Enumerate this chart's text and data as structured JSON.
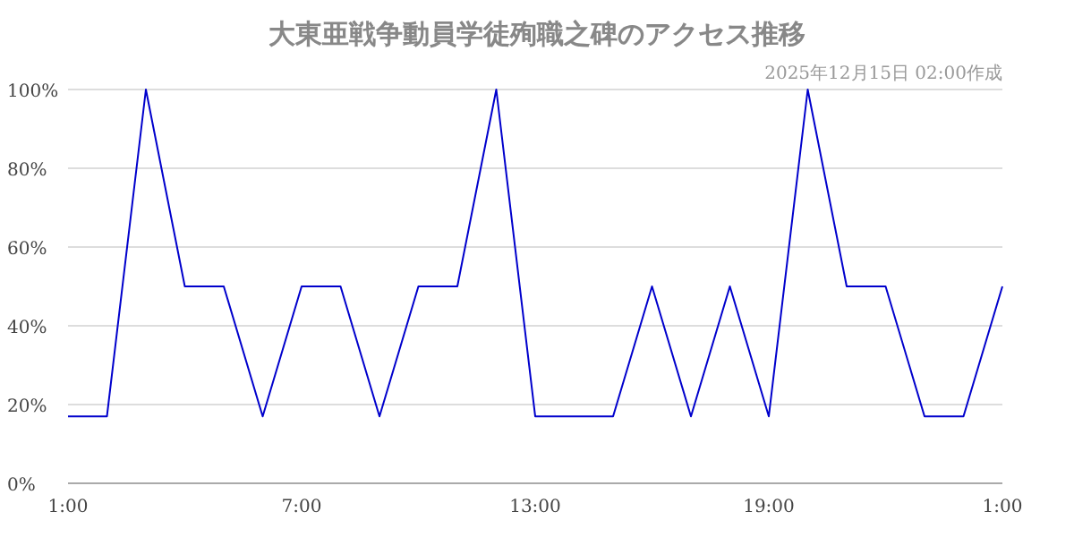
{
  "chart_data": {
    "type": "line",
    "title": "大東亜戦争動員学徒殉職之碑のアクセス推移",
    "subtitle": "2025年12月15日 02:00作成",
    "x": [
      "2025-12-14T01:00",
      "2025-12-14T02:00",
      "2025-12-14T03:00",
      "2025-12-14T04:00",
      "2025-12-14T05:00",
      "2025-12-14T06:00",
      "2025-12-14T07:00",
      "2025-12-14T08:00",
      "2025-12-14T09:00",
      "2025-12-14T10:00",
      "2025-12-14T11:00",
      "2025-12-14T12:00",
      "2025-12-14T13:00",
      "2025-12-14T14:00",
      "2025-12-14T15:00",
      "2025-12-14T16:00",
      "2025-12-14T17:00",
      "2025-12-14T18:00",
      "2025-12-14T19:00",
      "2025-12-14T20:00",
      "2025-12-14T21:00",
      "2025-12-14T22:00",
      "2025-12-14T23:00",
      "2025-12-15T00:00",
      "2025-12-15T01:00"
    ],
    "series": [
      {
        "color": "#0000cc",
        "values": [
          17,
          17,
          100,
          50,
          50,
          17,
          50,
          50,
          17,
          50,
          50,
          100,
          17,
          17,
          17,
          50,
          17,
          50,
          17,
          100,
          50,
          50,
          17,
          17,
          50
        ]
      }
    ],
    "xlim": [
      "2025-12-14T01:00",
      "2025-12-15T01:00"
    ],
    "xticks": [
      {
        "value": "2025-12-14T01:00",
        "label": "1:00"
      },
      {
        "value": "2025-12-14T07:00",
        "label": "7:00"
      },
      {
        "value": "2025-12-14T13:00",
        "label": "13:00"
      },
      {
        "value": "2025-12-14T19:00",
        "label": "19:00"
      },
      {
        "value": "2025-12-15T01:00",
        "label": "1:00"
      }
    ],
    "ylim": [
      0,
      100
    ],
    "yticks": [
      {
        "value": 0,
        "label": "0%"
      },
      {
        "value": 20,
        "label": "20%"
      },
      {
        "value": 40,
        "label": "40%"
      },
      {
        "value": 60,
        "label": "60%"
      },
      {
        "value": 80,
        "label": "80%"
      },
      {
        "value": 100,
        "label": "100%"
      }
    ],
    "grid": "y",
    "marker": "none",
    "line_style": "solid"
  }
}
